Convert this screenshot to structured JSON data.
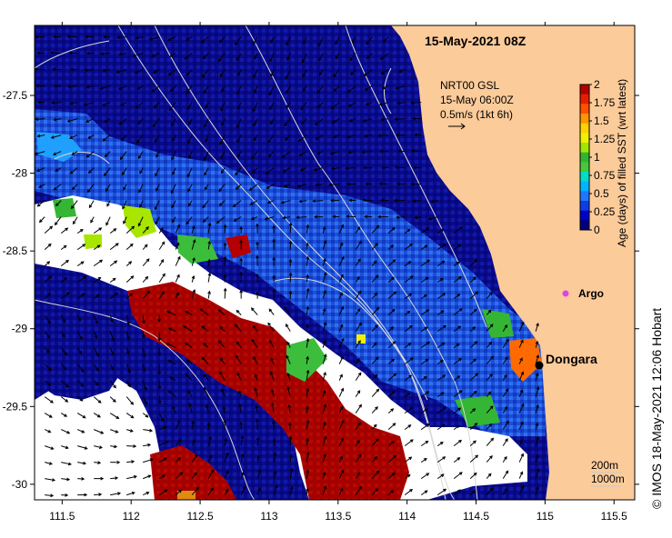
{
  "map": {
    "title": "15-May-2021 08Z",
    "x_axis": {
      "range": [
        111.3,
        115.65
      ],
      "ticks": [
        111.5,
        112,
        112.5,
        113,
        113.5,
        114,
        114.5,
        115,
        115.5
      ],
      "tick_labels": [
        "111.5",
        "112",
        "112.5",
        "113",
        "113.5",
        "114",
        "114.5",
        "115",
        "115.5"
      ]
    },
    "y_axis": {
      "range": [
        -30.1,
        -27.05
      ],
      "ticks": [
        -27.5,
        -28,
        -28.5,
        -29,
        -29.5,
        -30
      ],
      "tick_labels": [
        "-27.5",
        "-28",
        "-28.5",
        "-29",
        "-29.5",
        "-30"
      ]
    },
    "current_legend": {
      "line1": "NRT00 GSL",
      "line2": "15-May 06:00Z",
      "line3": "0.5m/s (1kt 6h)"
    },
    "colorbar": {
      "label": "Age (days) of filled SST (wrt latest)",
      "range": [
        0,
        2
      ],
      "tick_labels": [
        "2",
        "1.75",
        "1.5",
        "1.25",
        "1",
        "0.75",
        "0.5",
        "0.25",
        "0"
      ],
      "colors": [
        "#00007f",
        "#0000c8",
        "#0b3fe6",
        "#1e78ff",
        "#00b4ff",
        "#00dcc8",
        "#46c83c",
        "#32b432",
        "#a0e600",
        "#f0f000",
        "#ffd200",
        "#ff9600",
        "#ff5000",
        "#e61e00",
        "#b40000"
      ]
    },
    "places": [
      {
        "name": "Dongara",
        "lon": 114.93,
        "lat": -29.25
      },
      {
        "name": "Argo",
        "lon": 115.12,
        "lat": -28.84
      }
    ],
    "contour_legend": {
      "line1": "200m",
      "line2": "1000m"
    },
    "credit": "© IMOS 18-May-2021 12:06 Hobart",
    "colors": {
      "land": "#fccb9a",
      "no_data": "#ffffff",
      "contour": "#d0d0d0",
      "dot_dongara": "#000000",
      "dot_argo": "#e040f0"
    }
  }
}
